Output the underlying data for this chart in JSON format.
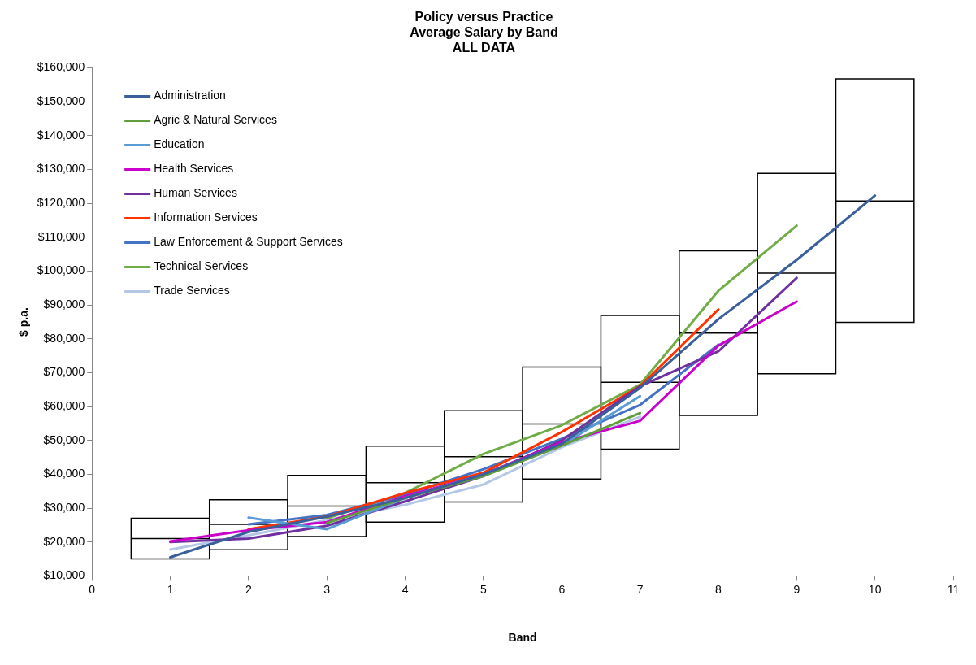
{
  "chart_data": {
    "type": "line",
    "title": "Policy versus Practice\nAverage Salary by Band\nALL DATA",
    "xlabel": "Band",
    "ylabel": "$ p.a.",
    "xlim": [
      0,
      11
    ],
    "xticks": [
      0,
      1,
      2,
      3,
      4,
      5,
      6,
      7,
      8,
      9,
      10,
      11
    ],
    "ylim": [
      10000,
      160000
    ],
    "yticks": [
      {
        "value": 10000,
        "label": "$10,000"
      },
      {
        "value": 20000,
        "label": "$20,000"
      },
      {
        "value": 30000,
        "label": "$30,000"
      },
      {
        "value": 40000,
        "label": "$40,000"
      },
      {
        "value": 50000,
        "label": "$50,000"
      },
      {
        "value": 60000,
        "label": "$60,000"
      },
      {
        "value": 70000,
        "label": "$70,000"
      },
      {
        "value": 80000,
        "label": "$80,000"
      },
      {
        "value": 90000,
        "label": "$90,000"
      },
      {
        "value": 100000,
        "label": "$100,000"
      },
      {
        "value": 110000,
        "label": "$110,000"
      },
      {
        "value": 120000,
        "label": "$120,000"
      },
      {
        "value": 130000,
        "label": "$130,000"
      },
      {
        "value": 140000,
        "label": "$140,000"
      },
      {
        "value": 150000,
        "label": "$150,000"
      },
      {
        "value": 160000,
        "label": "$160,000"
      }
    ],
    "grid": false,
    "legend": "top left",
    "marker": "none",
    "line_style": "solid",
    "series": [
      {
        "type": "box",
        "color": "#000000",
        "x": [
          1,
          2,
          3,
          4,
          5,
          6,
          7,
          8,
          9,
          10
        ],
        "boxes": [
          {
            "low": 15000,
            "q1": 15000,
            "median": 21000,
            "q3": 27000,
            "high": 27000
          },
          {
            "low": 17700,
            "q1": 17700,
            "median": 25200,
            "q3": 32500,
            "high": 32500
          },
          {
            "low": 21600,
            "q1": 21600,
            "median": 30600,
            "q3": 39700,
            "high": 39700
          },
          {
            "low": 25900,
            "q1": 25900,
            "median": 37500,
            "q3": 48300,
            "high": 48300
          },
          {
            "low": 31800,
            "q1": 31800,
            "median": 45200,
            "q3": 58800,
            "high": 58800
          },
          {
            "low": 38600,
            "q1": 38600,
            "median": 54900,
            "q3": 71700,
            "high": 71700
          },
          {
            "low": 47400,
            "q1": 47400,
            "median": 67200,
            "q3": 86900,
            "high": 86900
          },
          {
            "low": 57400,
            "q1": 57400,
            "median": 81700,
            "q3": 106000,
            "high": 106000
          },
          {
            "low": 69700,
            "q1": 69700,
            "median": 99400,
            "q3": 128900,
            "high": 128900
          },
          {
            "low": 84900,
            "q1": 84900,
            "median": 120700,
            "q3": 156800,
            "high": 156800
          }
        ]
      },
      {
        "name": "Administration",
        "color": "#3a5f9b",
        "x": [
          1,
          2,
          3,
          4,
          5,
          6,
          7,
          8,
          9,
          10
        ],
        "values": [
          15500,
          23000,
          27500,
          33000,
          40000,
          49000,
          65500,
          85800,
          103300,
          122300
        ]
      },
      {
        "name": "Agric & Natural Services",
        "color": "#5f9e3a",
        "x": [
          3,
          4,
          5,
          6,
          7
        ],
        "values": [
          25600,
          33000,
          39500,
          48500,
          58100
        ]
      },
      {
        "name": "Education",
        "color": "#5b9bd5",
        "x": [
          2,
          3,
          4,
          5,
          6,
          7
        ],
        "values": [
          27200,
          23800,
          33000,
          40000,
          48500,
          63100
        ]
      },
      {
        "name": "Health Services",
        "color": "#cc00cc",
        "x": [
          1,
          2,
          3,
          4,
          5,
          6,
          7,
          8,
          9
        ],
        "values": [
          20200,
          23500,
          25900,
          33500,
          40000,
          49500,
          55800,
          78000,
          91000
        ]
      },
      {
        "name": "Human Services",
        "color": "#7030a0",
        "x": [
          1,
          2,
          3,
          4,
          5,
          6,
          7,
          8,
          9
        ],
        "values": [
          20000,
          21000,
          24800,
          32000,
          39500,
          50000,
          66000,
          76300,
          98000
        ]
      },
      {
        "name": "Information Services",
        "color": "#ff3300",
        "x": [
          2,
          3,
          4,
          5,
          6,
          7,
          8
        ],
        "values": [
          23800,
          27500,
          34500,
          40500,
          52500,
          66000,
          88700
        ]
      },
      {
        "name": "Law Enforcement & Support Services",
        "color": "#4472c4",
        "x": [
          2,
          3,
          4,
          5,
          6,
          7,
          8
        ],
        "values": [
          25200,
          28000,
          34000,
          41500,
          50500,
          60500,
          78300
        ]
      },
      {
        "name": "Technical Services",
        "color": "#70ad47",
        "x": [
          3,
          4,
          5,
          6,
          7,
          8,
          9
        ],
        "values": [
          27000,
          34500,
          46000,
          54500,
          66500,
          94200,
          113400
        ]
      },
      {
        "name": "Trade Services",
        "color": "#b4c7e7",
        "x": [
          1,
          2,
          3,
          4,
          5,
          6,
          7
        ],
        "values": [
          17800,
          22000,
          26500,
          31000,
          37000,
          48000,
          57000
        ]
      }
    ]
  }
}
